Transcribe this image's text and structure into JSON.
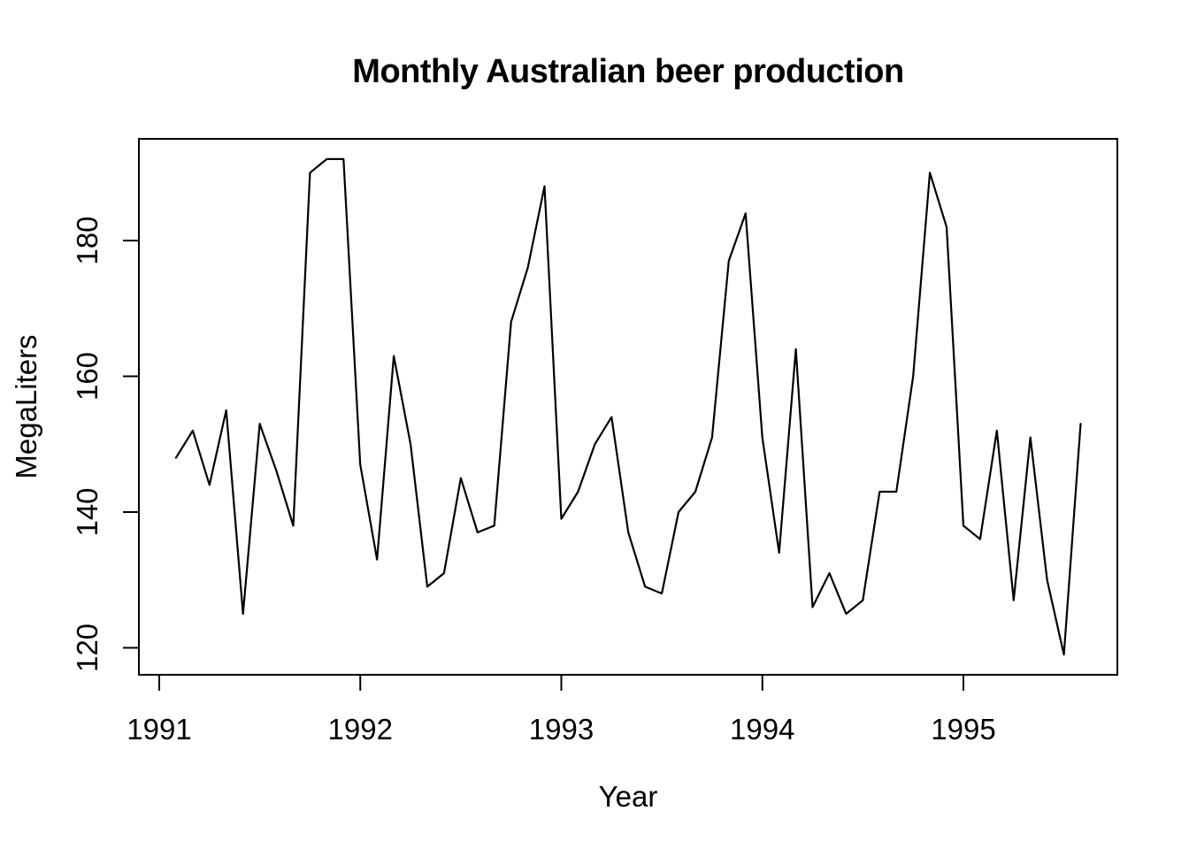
{
  "figure": {
    "title": "Monthly Australian beer production",
    "xlabel": "Year",
    "ylabel": "MegaLiters"
  },
  "chart_data": {
    "type": "line",
    "title": "Monthly Australian beer production",
    "xlabel": "Year",
    "ylabel": "MegaLiters",
    "grid": false,
    "legend": false,
    "background_color": "#ffffff",
    "line_color": "#000000",
    "x_ticks": [
      1991,
      1992,
      1993,
      1994,
      1995
    ],
    "y_ticks": [
      120,
      140,
      160,
      180
    ],
    "xlim": [
      1990.9,
      1995.77
    ],
    "ylim": [
      116,
      195
    ],
    "series": [
      {
        "name": "Monthly Australian beer production (MegaLiters)",
        "x_start_year": 1991.08333,
        "x_step_years": 0.08333,
        "x_frequency": "monthly",
        "values": [
          148,
          152,
          144,
          155,
          125,
          153,
          146,
          138,
          190,
          192,
          192,
          147,
          133,
          163,
          150,
          129,
          131,
          145,
          137,
          138,
          168,
          176,
          188,
          139,
          143,
          150,
          154,
          137,
          129,
          128,
          140,
          143,
          151,
          177,
          184,
          151,
          134,
          164,
          126,
          131,
          125,
          127,
          143,
          143,
          160,
          190,
          182,
          138,
          136,
          152,
          127,
          151,
          130,
          119,
          153
        ]
      }
    ]
  }
}
